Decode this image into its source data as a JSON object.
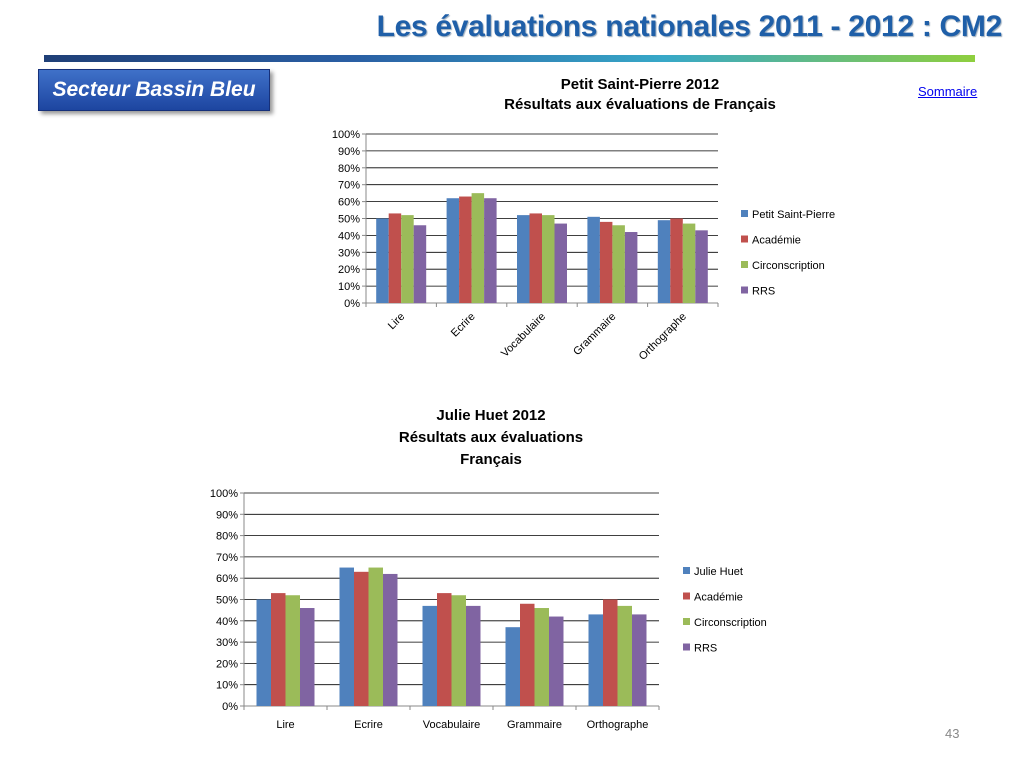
{
  "header": {
    "title": "Les évaluations nationales 2011 - 2012  : CM2",
    "sector": "Secteur  Bassin Bleu",
    "link": "Sommaire",
    "slide_number": "43"
  },
  "colors": {
    "blue": "#4f81bd",
    "red": "#c0504d",
    "green": "#9bbb59",
    "purple": "#8064a2"
  },
  "chart_data": [
    {
      "type": "bar",
      "title_lines": [
        "Petit Saint-Pierre 2012",
        "Résultats aux évaluations de Français"
      ],
      "categories": [
        "Lire",
        "Ecrire",
        "Vocabulaire",
        "Grammaire",
        "Orthographe"
      ],
      "series": [
        {
          "name": "Petit Saint-Pierre",
          "color": "#4f81bd",
          "values": [
            50,
            62,
            52,
            51,
            49
          ]
        },
        {
          "name": "Académie",
          "color": "#c0504d",
          "values": [
            53,
            63,
            53,
            48,
            50
          ]
        },
        {
          "name": "Circonscription",
          "color": "#9bbb59",
          "values": [
            52,
            65,
            52,
            46,
            47
          ]
        },
        {
          "name": "RRS",
          "color": "#8064a2",
          "values": [
            46,
            62,
            47,
            42,
            43
          ]
        }
      ],
      "ylim": [
        0,
        100
      ],
      "y_ticks": [
        "0%",
        "10%",
        "20%",
        "30%",
        "40%",
        "50%",
        "60%",
        "70%",
        "80%",
        "90%",
        "100%"
      ],
      "grid": true,
      "legend": "right",
      "xlabel": "",
      "ylabel": ""
    },
    {
      "type": "bar",
      "title_lines": [
        "Julie Huet 2012",
        "Résultats aux évaluations",
        "Français"
      ],
      "categories": [
        "Lire",
        "Ecrire",
        "Vocabulaire",
        "Grammaire",
        "Orthographe"
      ],
      "series": [
        {
          "name": "Julie Huet",
          "color": "#4f81bd",
          "values": [
            50,
            65,
            47,
            37,
            43
          ]
        },
        {
          "name": "Académie",
          "color": "#c0504d",
          "values": [
            53,
            63,
            53,
            48,
            50
          ]
        },
        {
          "name": "Circonscription",
          "color": "#9bbb59",
          "values": [
            52,
            65,
            52,
            46,
            47
          ]
        },
        {
          "name": "RRS",
          "color": "#8064a2",
          "values": [
            46,
            62,
            47,
            42,
            43
          ]
        }
      ],
      "ylim": [
        0,
        100
      ],
      "y_ticks": [
        "0%",
        "10%",
        "20%",
        "30%",
        "40%",
        "50%",
        "60%",
        "70%",
        "80%",
        "90%",
        "100%"
      ],
      "grid": true,
      "legend": "right",
      "xlabel": "",
      "ylabel": ""
    }
  ]
}
